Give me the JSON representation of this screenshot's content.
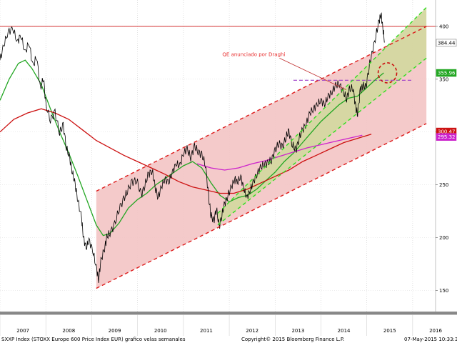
{
  "chart_data": {
    "type": "line",
    "title": "",
    "x_range": [
      2007.0,
      2016.5
    ],
    "ylim": [
      130,
      425
    ],
    "y_ticks": [
      150,
      200,
      250,
      300,
      350,
      400
    ],
    "x_tick_labels": [
      "2007",
      "2008",
      "2009",
      "2010",
      "2011",
      "2012",
      "2013",
      "2014",
      "2015",
      "2016"
    ],
    "grid": true,
    "price_series": {
      "color": "#000000",
      "points": [
        [
          2007.0,
          368
        ],
        [
          2007.08,
          382
        ],
        [
          2007.18,
          395
        ],
        [
          2007.28,
          398
        ],
        [
          2007.38,
          385
        ],
        [
          2007.45,
          392
        ],
        [
          2007.55,
          375
        ],
        [
          2007.63,
          385
        ],
        [
          2007.72,
          362
        ],
        [
          2007.8,
          372
        ],
        [
          2007.88,
          340
        ],
        [
          2007.95,
          352
        ],
        [
          2008.0,
          325
        ],
        [
          2008.1,
          312
        ],
        [
          2008.2,
          318
        ],
        [
          2008.3,
          300
        ],
        [
          2008.38,
          306
        ],
        [
          2008.45,
          285
        ],
        [
          2008.52,
          275
        ],
        [
          2008.58,
          262
        ],
        [
          2008.64,
          250
        ],
        [
          2008.7,
          235
        ],
        [
          2008.78,
          218
        ],
        [
          2008.82,
          200
        ],
        [
          2008.88,
          190
        ],
        [
          2008.94,
          198
        ],
        [
          2009.02,
          188
        ],
        [
          2009.1,
          172
        ],
        [
          2009.15,
          160
        ],
        [
          2009.2,
          178
        ],
        [
          2009.28,
          190
        ],
        [
          2009.33,
          200
        ],
        [
          2009.4,
          205
        ],
        [
          2009.5,
          212
        ],
        [
          2009.6,
          228
        ],
        [
          2009.7,
          236
        ],
        [
          2009.78,
          245
        ],
        [
          2009.88,
          252
        ],
        [
          2009.98,
          255
        ],
        [
          2010.08,
          240
        ],
        [
          2010.16,
          250
        ],
        [
          2010.24,
          260
        ],
        [
          2010.32,
          264
        ],
        [
          2010.38,
          248
        ],
        [
          2010.45,
          238
        ],
        [
          2010.52,
          248
        ],
        [
          2010.6,
          256
        ],
        [
          2010.68,
          252
        ],
        [
          2010.76,
          262
        ],
        [
          2010.84,
          270
        ],
        [
          2010.92,
          268
        ],
        [
          2011.0,
          280
        ],
        [
          2011.08,
          284
        ],
        [
          2011.16,
          276
        ],
        [
          2011.24,
          286
        ],
        [
          2011.32,
          282
        ],
        [
          2011.4,
          278
        ],
        [
          2011.48,
          270
        ],
        [
          2011.55,
          238
        ],
        [
          2011.6,
          222
        ],
        [
          2011.66,
          215
        ],
        [
          2011.72,
          228
        ],
        [
          2011.78,
          210
        ],
        [
          2011.84,
          222
        ],
        [
          2011.9,
          232
        ],
        [
          2011.97,
          240
        ],
        [
          2012.05,
          248
        ],
        [
          2012.12,
          256
        ],
        [
          2012.18,
          252
        ],
        [
          2012.25,
          258
        ],
        [
          2012.32,
          246
        ],
        [
          2012.38,
          238
        ],
        [
          2012.45,
          244
        ],
        [
          2012.52,
          252
        ],
        [
          2012.6,
          260
        ],
        [
          2012.68,
          266
        ],
        [
          2012.76,
          270
        ],
        [
          2012.84,
          270
        ],
        [
          2012.92,
          274
        ],
        [
          2013.0,
          282
        ],
        [
          2013.08,
          290
        ],
        [
          2013.16,
          285
        ],
        [
          2013.24,
          296
        ],
        [
          2013.3,
          300
        ],
        [
          2013.38,
          288
        ],
        [
          2013.45,
          282
        ],
        [
          2013.52,
          294
        ],
        [
          2013.6,
          302
        ],
        [
          2013.68,
          308
        ],
        [
          2013.76,
          318
        ],
        [
          2013.84,
          322
        ],
        [
          2013.92,
          326
        ],
        [
          2014.0,
          330
        ],
        [
          2014.08,
          326
        ],
        [
          2014.16,
          334
        ],
        [
          2014.24,
          338
        ],
        [
          2014.32,
          344
        ],
        [
          2014.4,
          346
        ],
        [
          2014.48,
          338
        ],
        [
          2014.56,
          332
        ],
        [
          2014.62,
          340
        ],
        [
          2014.7,
          342
        ],
        [
          2014.76,
          322
        ],
        [
          2014.8,
          318
        ],
        [
          2014.86,
          340
        ],
        [
          2014.92,
          344
        ],
        [
          2014.98,
          342
        ],
        [
          2015.05,
          362
        ],
        [
          2015.12,
          375
        ],
        [
          2015.2,
          392
        ],
        [
          2015.27,
          405
        ],
        [
          2015.31,
          412
        ],
        [
          2015.35,
          398
        ],
        [
          2015.39,
          385
        ]
      ]
    },
    "moving_averages": [
      {
        "color": "#22a622",
        "points": [
          [
            2007.0,
            330
          ],
          [
            2007.2,
            350
          ],
          [
            2007.4,
            365
          ],
          [
            2007.55,
            368
          ],
          [
            2007.7,
            360
          ],
          [
            2007.9,
            345
          ],
          [
            2008.1,
            322
          ],
          [
            2008.3,
            300
          ],
          [
            2008.5,
            280
          ],
          [
            2008.7,
            258
          ],
          [
            2008.9,
            235
          ],
          [
            2009.1,
            212
          ],
          [
            2009.25,
            202
          ],
          [
            2009.4,
            204
          ],
          [
            2009.6,
            214
          ],
          [
            2009.8,
            228
          ],
          [
            2010.0,
            236
          ],
          [
            2010.2,
            242
          ],
          [
            2010.4,
            250
          ],
          [
            2010.6,
            256
          ],
          [
            2010.8,
            262
          ],
          [
            2011.0,
            268
          ],
          [
            2011.2,
            272
          ],
          [
            2011.4,
            266
          ],
          [
            2011.6,
            252
          ],
          [
            2011.8,
            240
          ],
          [
            2012.0,
            234
          ],
          [
            2012.2,
            238
          ],
          [
            2012.4,
            240
          ],
          [
            2012.6,
            246
          ],
          [
            2012.8,
            254
          ],
          [
            2013.0,
            262
          ],
          [
            2013.2,
            272
          ],
          [
            2013.4,
            280
          ],
          [
            2013.6,
            290
          ],
          [
            2013.8,
            300
          ],
          [
            2014.0,
            310
          ],
          [
            2014.2,
            318
          ],
          [
            2014.4,
            326
          ],
          [
            2014.6,
            332
          ],
          [
            2014.8,
            334
          ],
          [
            2015.0,
            342
          ],
          [
            2015.2,
            350
          ],
          [
            2015.37,
            356
          ]
        ]
      },
      {
        "color": "#cc1010",
        "points": [
          [
            2007.0,
            300
          ],
          [
            2007.3,
            312
          ],
          [
            2007.6,
            318
          ],
          [
            2007.9,
            322
          ],
          [
            2008.2,
            318
          ],
          [
            2008.5,
            312
          ],
          [
            2008.8,
            302
          ],
          [
            2009.1,
            292
          ],
          [
            2009.4,
            285
          ],
          [
            2009.7,
            278
          ],
          [
            2010.0,
            272
          ],
          [
            2010.3,
            266
          ],
          [
            2010.6,
            260
          ],
          [
            2010.9,
            253
          ],
          [
            2011.2,
            248
          ],
          [
            2011.5,
            245
          ],
          [
            2011.8,
            242
          ],
          [
            2012.1,
            242
          ],
          [
            2012.4,
            246
          ],
          [
            2012.7,
            252
          ],
          [
            2013.0,
            258
          ],
          [
            2013.3,
            264
          ],
          [
            2013.6,
            272
          ],
          [
            2013.9,
            278
          ],
          [
            2014.2,
            284
          ],
          [
            2014.5,
            290
          ],
          [
            2014.8,
            294
          ],
          [
            2015.1,
            298
          ]
        ]
      },
      {
        "color": "#cc22cc",
        "points": [
          [
            2011.3,
            270
          ],
          [
            2011.6,
            266
          ],
          [
            2011.9,
            264
          ],
          [
            2012.2,
            266
          ],
          [
            2012.5,
            270
          ],
          [
            2012.8,
            273
          ],
          [
            2013.1,
            277
          ],
          [
            2013.4,
            281
          ],
          [
            2013.7,
            285
          ],
          [
            2014.0,
            288
          ],
          [
            2014.3,
            291
          ],
          [
            2014.6,
            294
          ],
          [
            2014.9,
            297
          ]
        ]
      }
    ],
    "channels": {
      "red_upper": [
        [
          2009.1,
          244
        ],
        [
          2016.3,
          400
        ]
      ],
      "red_lower": [
        [
          2009.1,
          152
        ],
        [
          2016.3,
          308
        ]
      ],
      "green_upper": [
        [
          2011.75,
          223
        ],
        [
          2016.3,
          418
        ]
      ],
      "green_lower": [
        [
          2011.75,
          212
        ],
        [
          2016.3,
          370
        ]
      ]
    },
    "reference_lines": [
      {
        "value": 400,
        "color": "#cc1010",
        "x_start": 2006.9,
        "x_end": 2016.5
      },
      {
        "value": 349,
        "color": "#9a3ac8",
        "x_start": 2013.4,
        "x_end": 2016.0
      }
    ],
    "annotation": {
      "text": "QE anunciado por Draghi",
      "arrow_end": [
        2014.55,
        340
      ]
    },
    "price_tags": [
      {
        "label": "384.44",
        "value": 384.44,
        "bg": "#ffffff",
        "fg": "#000000"
      },
      {
        "label": "355.96",
        "value": 355.96,
        "bg": "#22a622",
        "fg": "#ffffff"
      },
      {
        "label": "300.47",
        "value": 300.47,
        "bg": "#cc1010",
        "fg": "#ffffff"
      },
      {
        "label": "295.32",
        "value": 295.32,
        "bg": "#cc22cc",
        "fg": "#ffffff"
      }
    ],
    "colors": {
      "red_channel_fill": "#f3c4c4",
      "green_channel_fill": "#d4d7a0"
    }
  },
  "footer": {
    "left": "SXXP Index (STOXX Europe 600 Price Index EUR) grafico velas semanales",
    "center": "Copyright© 2015 Bloomberg Finance L.P.",
    "right": "07-May-2015 10:33:34"
  }
}
